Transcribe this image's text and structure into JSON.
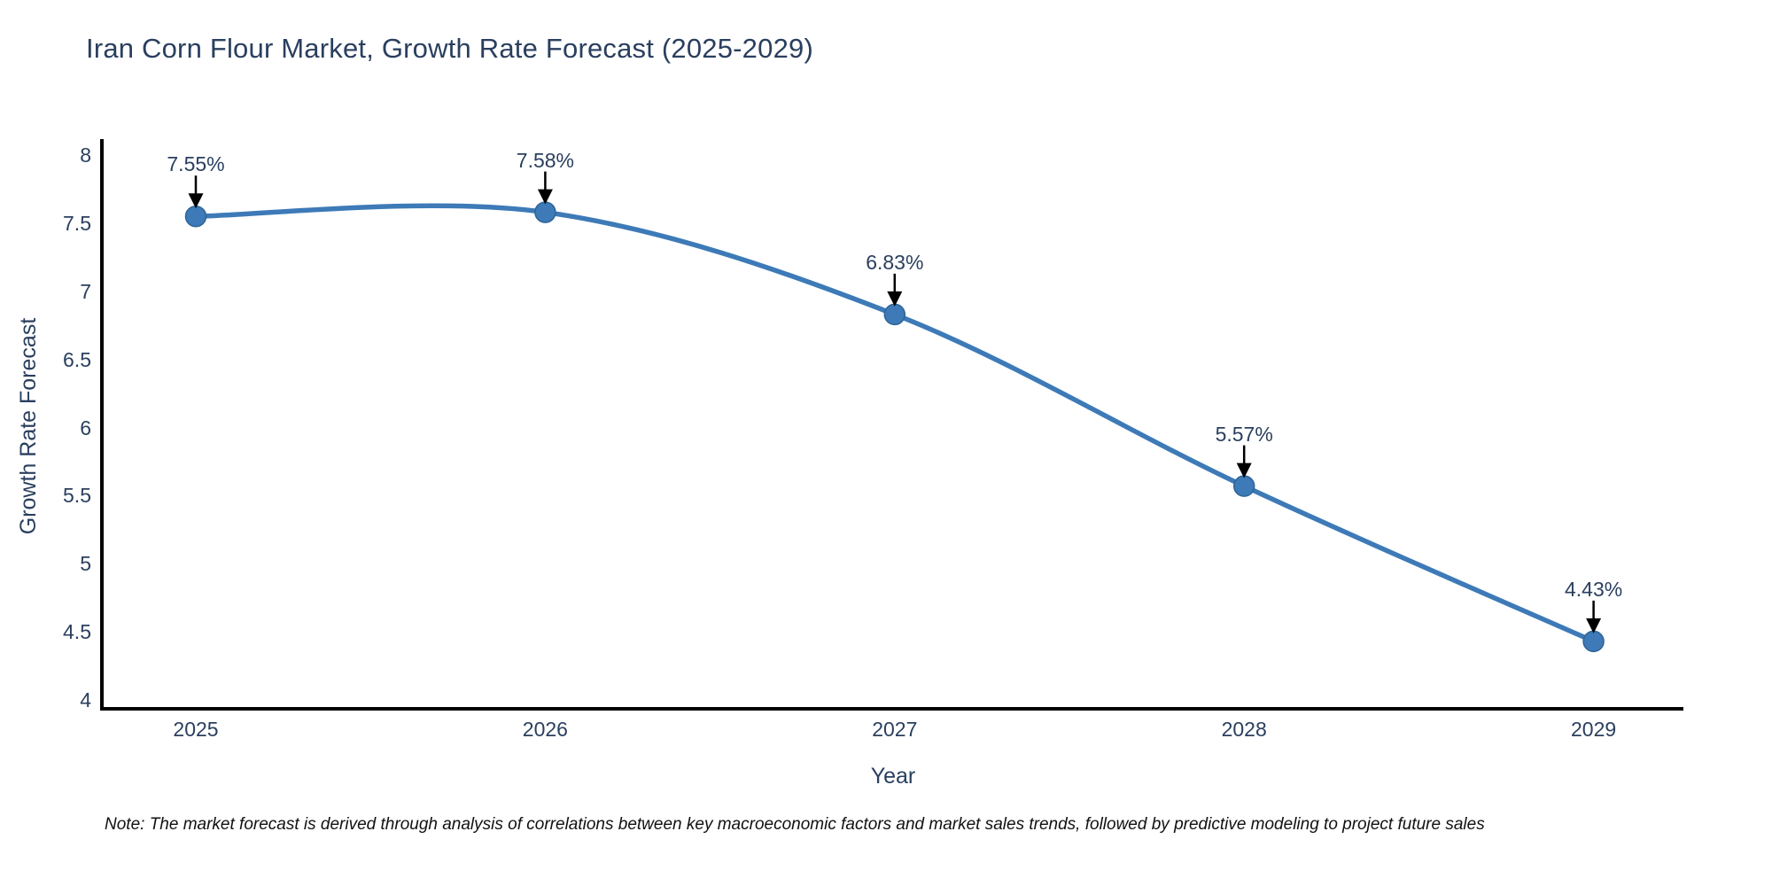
{
  "page": {
    "background": "#ffffff"
  },
  "title": "Iran Corn Flour Market, Growth Rate Forecast (2025-2029)",
  "note": "Note: The market forecast is derived through analysis of correlations between key macroeconomic factors and market sales trends, followed by predictive modeling to project future sales",
  "chart_data": {
    "type": "line",
    "line_shape": "spline",
    "title": "Iran Corn Flour Market, Growth Rate Forecast (2025-2029)",
    "xlabel": "Year",
    "ylabel": "Growth Rate Forecast",
    "x": [
      2025,
      2026,
      2027,
      2028,
      2029
    ],
    "series": [
      {
        "name": "Growth Rate Forecast",
        "values": [
          7.55,
          7.58,
          6.83,
          5.57,
          4.43
        ]
      }
    ],
    "point_labels": [
      "7.55%",
      "7.58%",
      "6.83%",
      "5.57%",
      "4.43%"
    ],
    "xtick_labels": [
      "2025",
      "2026",
      "2027",
      "2028",
      "2029"
    ],
    "ytick_labels": [
      "8",
      "7.5",
      "7",
      "6.5",
      "6",
      "5.5",
      "5",
      "4.5",
      "4"
    ],
    "ylim": [
      4,
      8
    ],
    "grid": false,
    "legend_position": "none",
    "colors": {
      "line": "#3d7ab7",
      "marker_fill": "#3d7ab7",
      "marker_edge": "#2e6496",
      "axis": "#000000",
      "text": "#2a3f5f",
      "annotation_text": "#2a3f5f",
      "annotation_arrow": "#000000",
      "note_text": "#111111"
    }
  }
}
